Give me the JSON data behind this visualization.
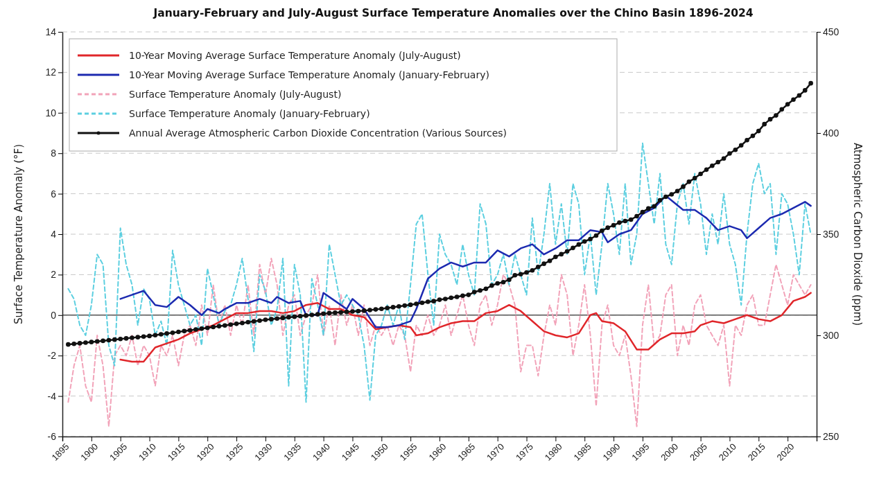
{
  "chart_data": {
    "type": "line",
    "title": "January-February and July-August Surface Temperature Anomalies over the Chino Basin 1896-2024",
    "ylabel": "Surface Temperature Anomaly (°F)",
    "y2label": "Atmospheric Carbon Dioxide (ppm)",
    "x": [
      1896,
      1897,
      1898,
      1899,
      1900,
      1901,
      1902,
      1903,
      1904,
      1905,
      1906,
      1907,
      1908,
      1909,
      1910,
      1911,
      1912,
      1913,
      1914,
      1915,
      1916,
      1917,
      1918,
      1919,
      1920,
      1921,
      1922,
      1923,
      1924,
      1925,
      1926,
      1927,
      1928,
      1929,
      1930,
      1931,
      1932,
      1933,
      1934,
      1935,
      1936,
      1937,
      1938,
      1939,
      1940,
      1941,
      1942,
      1943,
      1944,
      1945,
      1946,
      1947,
      1948,
      1949,
      1950,
      1951,
      1952,
      1953,
      1954,
      1955,
      1956,
      1957,
      1958,
      1959,
      1960,
      1961,
      1962,
      1963,
      1964,
      1965,
      1966,
      1967,
      1968,
      1969,
      1970,
      1971,
      1972,
      1973,
      1974,
      1975,
      1976,
      1977,
      1978,
      1979,
      1980,
      1981,
      1982,
      1983,
      1984,
      1985,
      1986,
      1987,
      1988,
      1989,
      1990,
      1991,
      1992,
      1993,
      1994,
      1995,
      1996,
      1997,
      1998,
      1999,
      2000,
      2001,
      2002,
      2003,
      2004,
      2005,
      2006,
      2007,
      2008,
      2009,
      2010,
      2011,
      2012,
      2013,
      2014,
      2015,
      2016,
      2017,
      2018,
      2019,
      2020,
      2021,
      2022,
      2023,
      2024
    ],
    "xlim": [
      1895,
      2025
    ],
    "xticks": [
      1895,
      1900,
      1905,
      1910,
      1915,
      1920,
      1925,
      1930,
      1935,
      1940,
      1945,
      1950,
      1955,
      1960,
      1965,
      1970,
      1975,
      1980,
      1985,
      1990,
      1995,
      2000,
      2005,
      2010,
      2015,
      2020
    ],
    "ylim": [
      -6,
      14
    ],
    "yticks": [
      -6,
      -4,
      -2,
      0,
      2,
      4,
      6,
      8,
      10,
      12,
      14
    ],
    "y2lim": [
      250,
      450
    ],
    "y2ticks": [
      250,
      300,
      350,
      400,
      450
    ],
    "grid": "y",
    "legend": "top left",
    "ref_lines": [
      {
        "axis": "y",
        "value": 0,
        "color": "#555555",
        "line_style": "solid"
      }
    ],
    "series": [
      {
        "name": "10-Year Moving Average Surface Temperature Anomaly (July-August)",
        "color": "#e0262a",
        "line_style": "solid",
        "marker": "none",
        "x": [
          1905,
          1907,
          1909,
          1911,
          1913,
          1915,
          1917,
          1919,
          1921,
          1923,
          1925,
          1927,
          1929,
          1931,
          1933,
          1935,
          1937,
          1939,
          1941,
          1943,
          1945,
          1947,
          1949,
          1951,
          1953,
          1955,
          1956,
          1958,
          1960,
          1962,
          1964,
          1966,
          1968,
          1970,
          1972,
          1974,
          1976,
          1978,
          1980,
          1982,
          1984,
          1986,
          1987,
          1988,
          1990,
          1992,
          1994,
          1996,
          1998,
          2000,
          2002,
          2004,
          2005,
          2007,
          2009,
          2011,
          2013,
          2015,
          2017,
          2019,
          2021,
          2023,
          2024
        ],
        "values": [
          -2.2,
          -2.3,
          -2.3,
          -1.6,
          -1.4,
          -1.2,
          -0.9,
          -0.7,
          -0.5,
          -0.2,
          0.1,
          0.1,
          0.2,
          0.2,
          0.1,
          0.2,
          0.5,
          0.6,
          0.3,
          0.3,
          0.0,
          -0.1,
          -0.7,
          -0.6,
          -0.5,
          -0.6,
          -1.0,
          -0.9,
          -0.6,
          -0.4,
          -0.3,
          -0.3,
          0.1,
          0.2,
          0.5,
          0.2,
          -0.3,
          -0.8,
          -1.0,
          -1.1,
          -0.9,
          0.0,
          0.1,
          -0.3,
          -0.4,
          -0.8,
          -1.7,
          -1.7,
          -1.2,
          -0.9,
          -0.9,
          -0.8,
          -0.5,
          -0.3,
          -0.4,
          -0.2,
          0.0,
          -0.2,
          -0.3,
          0.0,
          0.7,
          0.9,
          1.1
        ]
      },
      {
        "name": "10-Year Moving Average Surface Temperature Anomaly (January-February)",
        "color": "#1c2ab0",
        "line_style": "solid",
        "marker": "none",
        "x": [
          1905,
          1908,
          1909,
          1911,
          1913,
          1915,
          1917,
          1919,
          1920,
          1922,
          1923,
          1925,
          1927,
          1929,
          1931,
          1932,
          1934,
          1936,
          1937,
          1939,
          1940,
          1942,
          1944,
          1945,
          1947,
          1949,
          1951,
          1953,
          1955,
          1956,
          1958,
          1960,
          1962,
          1964,
          1966,
          1968,
          1970,
          1972,
          1974,
          1976,
          1978,
          1980,
          1982,
          1984,
          1986,
          1988,
          1989,
          1991,
          1993,
          1995,
          1997,
          1999,
          2002,
          2004,
          2006,
          2008,
          2010,
          2012,
          2013,
          2015,
          2017,
          2019,
          2021,
          2023,
          2024
        ],
        "values": [
          0.8,
          1.1,
          1.2,
          0.5,
          0.4,
          0.9,
          0.5,
          0.0,
          0.3,
          0.1,
          0.3,
          0.6,
          0.6,
          0.8,
          0.6,
          0.9,
          0.6,
          0.7,
          0.0,
          0.0,
          1.1,
          0.7,
          0.3,
          0.8,
          0.3,
          -0.6,
          -0.6,
          -0.5,
          -0.3,
          0.3,
          1.8,
          2.3,
          2.6,
          2.4,
          2.6,
          2.6,
          3.2,
          2.9,
          3.3,
          3.5,
          3.0,
          3.3,
          3.7,
          3.7,
          4.2,
          4.1,
          3.6,
          4.0,
          4.2,
          5.0,
          5.3,
          5.9,
          5.2,
          5.2,
          4.8,
          4.2,
          4.4,
          4.2,
          3.8,
          4.3,
          4.8,
          5.0,
          5.3,
          5.6,
          5.4
        ]
      },
      {
        "name": "Surface Temperature Anomaly (July-August)",
        "color": "#f2a3b9",
        "line_style": "dashed",
        "marker": "none",
        "values": [
          -4.3,
          -2.5,
          -1.5,
          -3.5,
          -4.3,
          -1.0,
          -2.5,
          -5.5,
          -2.0,
          -1.5,
          -2.0,
          -1.0,
          -2.5,
          -1.5,
          -2.0,
          -3.5,
          -1.5,
          -2.0,
          -1.0,
          -2.5,
          -1.0,
          -0.5,
          -1.5,
          0.5,
          -1.0,
          1.5,
          -0.5,
          0.5,
          -1.0,
          0.5,
          -0.5,
          1.5,
          -1.0,
          2.5,
          1.0,
          2.8,
          1.5,
          -1.0,
          0.5,
          1.0,
          -1.0,
          0.0,
          0.5,
          2.0,
          -1.0,
          0.5,
          -1.5,
          1.0,
          -0.5,
          0.5,
          -1.0,
          0.5,
          -1.5,
          -0.5,
          -1.0,
          -0.5,
          -1.5,
          -0.5,
          -1.0,
          -2.8,
          -0.5,
          -1.0,
          0.0,
          -1.0,
          -0.5,
          0.5,
          -1.0,
          0.0,
          1.0,
          -0.5,
          -1.5,
          0.5,
          1.0,
          -0.5,
          0.5,
          2.0,
          1.5,
          0.5,
          -2.8,
          -1.5,
          -1.5,
          -3.0,
          -1.0,
          0.5,
          -0.5,
          2.0,
          1.0,
          -2.0,
          -0.5,
          1.5,
          -1.0,
          -4.5,
          -0.5,
          0.5,
          -1.5,
          -2.0,
          -1.0,
          -3.0,
          -5.5,
          -0.5,
          1.5,
          -1.5,
          -1.0,
          1.0,
          1.5,
          -2.0,
          -0.5,
          -1.5,
          0.5,
          1.0,
          -0.5,
          -1.0,
          -1.5,
          -0.5,
          -3.5,
          -0.5,
          -1.0,
          0.5,
          1.0,
          -0.5,
          -0.5,
          1.0,
          2.5,
          1.5,
          0.5,
          2.0,
          1.5,
          1.0,
          1.5
        ]
      },
      {
        "name": "Surface Temperature Anomaly (January-February)",
        "color": "#5ccfe0",
        "line_style": "dashed",
        "marker": "none",
        "values": [
          1.3,
          0.8,
          -0.5,
          -1.0,
          0.5,
          3.0,
          2.5,
          -1.5,
          -2.5,
          4.3,
          2.5,
          1.5,
          -0.5,
          1.3,
          0.8,
          -1.0,
          -0.3,
          -1.5,
          3.2,
          1.5,
          0.5,
          -0.5,
          0.0,
          -1.5,
          2.3,
          1.0,
          -0.5,
          0.2,
          0.5,
          1.5,
          2.8,
          0.8,
          -1.8,
          2.0,
          1.2,
          -0.5,
          0.3,
          2.8,
          -3.5,
          2.5,
          1.0,
          -4.3,
          1.8,
          0.5,
          -1.0,
          3.5,
          2.0,
          0.5,
          1.0,
          0.5,
          0.0,
          -1.5,
          -4.2,
          -1.0,
          -0.5,
          0.5,
          -0.5,
          0.5,
          -1.2,
          1.5,
          4.5,
          5.0,
          2.0,
          -0.5,
          4.0,
          3.0,
          2.5,
          1.5,
          3.5,
          2.0,
          1.0,
          5.5,
          4.5,
          1.5,
          2.0,
          3.0,
          1.5,
          3.0,
          2.0,
          1.0,
          4.8,
          2.0,
          4.0,
          6.5,
          3.5,
          5.5,
          3.0,
          6.5,
          5.5,
          2.0,
          4.0,
          1.0,
          3.5,
          6.5,
          5.0,
          3.0,
          6.5,
          2.5,
          4.0,
          8.5,
          6.5,
          4.5,
          7.0,
          3.5,
          2.5,
          5.5,
          6.5,
          4.5,
          7.0,
          5.5,
          3.0,
          5.0,
          3.5,
          6.0,
          3.5,
          2.5,
          0.5,
          4.0,
          6.5,
          7.5,
          6.0,
          6.5,
          3.0,
          6.0,
          5.5,
          4.0,
          2.0,
          5.5,
          4.0
        ]
      },
      {
        "name": "Annual Average Atmospheric Carbon Dioxide Concentration (Various Sources)",
        "color": "#111111",
        "line_style": "solid",
        "marker": "circle",
        "axis": "y2",
        "values": [
          295.5,
          295.8,
          296.1,
          296.4,
          296.7,
          297.0,
          297.3,
          297.6,
          297.9,
          298.2,
          298.5,
          298.8,
          299.1,
          299.4,
          299.7,
          300.1,
          300.5,
          300.9,
          301.3,
          301.7,
          302.1,
          302.5,
          302.9,
          303.3,
          303.7,
          304.1,
          304.5,
          304.9,
          305.3,
          305.7,
          306.1,
          306.5,
          306.9,
          307.3,
          307.7,
          308.0,
          308.3,
          308.6,
          308.9,
          309.2,
          309.5,
          309.8,
          310.1,
          310.4,
          310.7,
          311.0,
          311.2,
          311.4,
          311.6,
          311.8,
          312.0,
          312.2,
          312.5,
          312.8,
          313.1,
          313.5,
          313.9,
          314.3,
          314.7,
          315.1,
          315.6,
          316.1,
          316.6,
          316.9,
          317.6,
          318.0,
          318.6,
          319.0,
          319.6,
          320.0,
          321.4,
          322.2,
          323.0,
          324.6,
          325.7,
          326.3,
          327.5,
          329.7,
          330.2,
          331.1,
          332.1,
          333.8,
          335.4,
          336.8,
          338.8,
          340.1,
          341.5,
          343.2,
          344.9,
          346.4,
          347.6,
          349.3,
          351.7,
          353.2,
          354.4,
          355.7,
          356.5,
          357.2,
          358.9,
          360.9,
          362.7,
          363.8,
          366.8,
          368.5,
          369.7,
          371.3,
          373.5,
          375.9,
          377.7,
          379.8,
          381.9,
          383.8,
          385.6,
          387.4,
          389.9,
          391.7,
          393.9,
          396.5,
          398.6,
          401.0,
          404.4,
          406.8,
          408.7,
          411.7,
          414.2,
          416.5,
          418.6,
          421.1,
          424.6
        ]
      }
    ]
  }
}
